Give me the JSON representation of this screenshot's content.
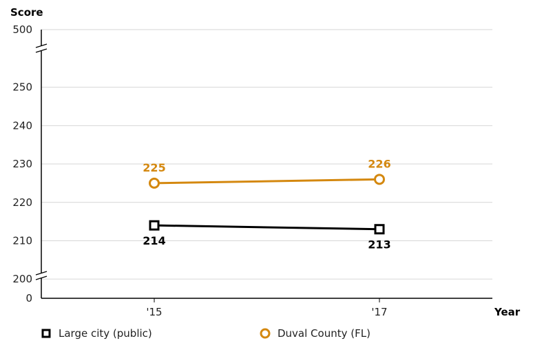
{
  "chart_data": {
    "type": "line",
    "ylabel": "Score",
    "xlabel": "Year",
    "x": [
      "'15",
      "'17"
    ],
    "y_ticks": [
      "0",
      "200",
      "210",
      "220",
      "230",
      "240",
      "250",
      "500"
    ],
    "y_axis_break": true,
    "grid": true,
    "legend_position": "bottom",
    "series": [
      {
        "name": "Large city (public)",
        "values": [
          214,
          213
        ],
        "color": "#000000",
        "marker": "square"
      },
      {
        "name": "Duval County (FL)",
        "values": [
          225,
          226
        ],
        "color": "#d4880f",
        "marker": "circle"
      }
    ]
  }
}
